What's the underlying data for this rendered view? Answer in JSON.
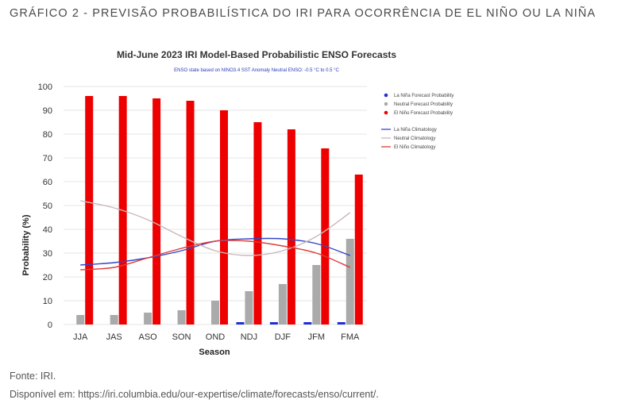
{
  "heading": "GRÁFICO 2 - PREVISÃO PROBABILÍSTICA DO IRI PARA OCORRÊNCIA DE EL NIÑO OU LA NIÑA",
  "source": "Fonte: IRI.",
  "available_at": "Disponível em: https://iri.columbia.edu/our-expertise/climate/forecasts/enso/current/.",
  "chart_data": {
    "type": "bar",
    "title": "Mid-June 2023 IRI Model-Based Probabilistic ENSO Forecasts",
    "subtitle": "ENSO state based on NINO3.4 SST Anomaly Neutral ENSO: -0.5 °C to 0.5 °C",
    "xlabel": "Season",
    "ylabel": "Probability (%)",
    "ylim": [
      0,
      100
    ],
    "yticks": [
      0,
      10,
      20,
      30,
      40,
      50,
      60,
      70,
      80,
      90,
      100
    ],
    "categories": [
      "JJA",
      "JAS",
      "ASO",
      "SON",
      "OND",
      "NDJ",
      "DJF",
      "JFM",
      "FMA"
    ],
    "legend_position": "right",
    "series": [
      {
        "name": "La Niña Forecast Probability",
        "kind": "bar",
        "color": "#1f2fd6",
        "values": [
          0,
          0,
          0,
          0,
          0,
          1,
          1,
          1,
          1
        ]
      },
      {
        "name": "Neutral Forecast Probability",
        "kind": "bar",
        "color": "#aaaaaa",
        "values": [
          4,
          4,
          5,
          6,
          10,
          14,
          17,
          25,
          36
        ]
      },
      {
        "name": "El Niño Forecast Probability",
        "kind": "bar",
        "color": "#ee0000",
        "values": [
          96,
          96,
          95,
          94,
          90,
          85,
          82,
          74,
          63
        ]
      },
      {
        "name": "La Niña Climatology",
        "kind": "line",
        "color": "#3346c9",
        "values": [
          25,
          26,
          28,
          31,
          35,
          36,
          36,
          34,
          29
        ]
      },
      {
        "name": "Neutral Climatology",
        "kind": "line",
        "color": "#c9b8bb",
        "values": [
          52,
          49,
          44,
          37,
          31,
          29,
          31,
          37,
          47
        ]
      },
      {
        "name": "El Niño Climatology",
        "kind": "line",
        "color": "#e03a3a",
        "values": [
          23,
          24,
          28,
          32,
          35,
          35,
          33,
          30,
          24
        ]
      }
    ]
  }
}
